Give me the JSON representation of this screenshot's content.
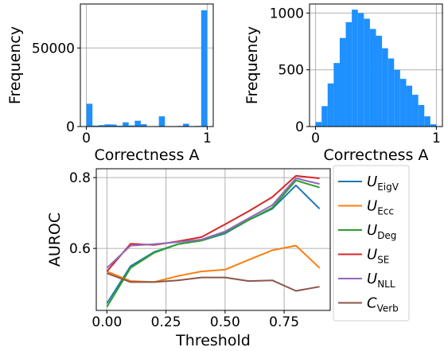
{
  "chart_data": [
    {
      "type": "bar",
      "xlabel": "Correctness A",
      "ylabel": "Frequency",
      "xlim": [
        -0.05,
        1.05
      ],
      "ylim": [
        0,
        78000
      ],
      "xticks": [
        {
          "v": 0,
          "label": "0"
        },
        {
          "v": 1,
          "label": "1"
        }
      ],
      "yticks": [
        {
          "v": 0,
          "label": "0"
        },
        {
          "v": 50000,
          "label": "50000"
        }
      ],
      "grid": true,
      "color": "#1e90ff",
      "bin_width": 0.05,
      "bins": [
        0,
        0.05,
        0.1,
        0.15,
        0.2,
        0.25,
        0.3,
        0.35,
        0.4,
        0.45,
        0.5,
        0.55,
        0.6,
        0.65,
        0.7,
        0.75,
        0.8,
        0.85,
        0.9,
        0.95
      ],
      "values": [
        14500,
        600,
        900,
        1400,
        1300,
        500,
        2700,
        700,
        3700,
        1500,
        200,
        300,
        6500,
        300,
        300,
        400,
        1800,
        300,
        400,
        74000
      ]
    },
    {
      "type": "bar",
      "xlabel": "Correctness A",
      "ylabel": "Frequency",
      "xlim": [
        -0.05,
        1.05
      ],
      "ylim": [
        0,
        1080
      ],
      "xticks": [
        {
          "v": 0,
          "label": "0"
        },
        {
          "v": 1,
          "label": "1"
        }
      ],
      "yticks": [
        {
          "v": 0,
          "label": "0"
        },
        {
          "v": 500,
          "label": "500"
        },
        {
          "v": 1000,
          "label": "1000"
        }
      ],
      "grid": true,
      "color": "#1e90ff",
      "bin_width": 0.05,
      "bins": [
        0,
        0.05,
        0.1,
        0.15,
        0.2,
        0.25,
        0.3,
        0.35,
        0.4,
        0.45,
        0.5,
        0.55,
        0.6,
        0.65,
        0.7,
        0.75,
        0.8,
        0.85,
        0.9,
        0.95
      ],
      "values": [
        40,
        180,
        380,
        560,
        780,
        920,
        1030,
        1000,
        950,
        860,
        800,
        690,
        600,
        500,
        420,
        360,
        280,
        190,
        90,
        20
      ]
    },
    {
      "type": "line",
      "xlabel": "Threshold",
      "ylabel": "AUROC",
      "xlim": [
        -0.045,
        0.945
      ],
      "ylim": [
        0.425,
        0.825
      ],
      "xticks": [
        {
          "v": 0,
          "label": "0.00"
        },
        {
          "v": 0.25,
          "label": "0.25"
        },
        {
          "v": 0.5,
          "label": "0.50"
        },
        {
          "v": 0.75,
          "label": "0.75"
        }
      ],
      "yticks": [
        {
          "v": 0.6,
          "label": "0.6"
        },
        {
          "v": 0.8,
          "label": "0.8"
        }
      ],
      "grid": true,
      "legend_position": "right",
      "x": [
        0,
        0.1,
        0.2,
        0.3,
        0.4,
        0.5,
        0.6,
        0.7,
        0.8,
        0.9
      ],
      "series": [
        {
          "name": "U",
          "sub": "EigV",
          "color": "#1f77b4",
          "values": [
            0.445,
            0.55,
            0.59,
            0.612,
            0.622,
            0.642,
            0.68,
            0.712,
            0.778,
            0.712
          ]
        },
        {
          "name": "U",
          "sub": "Ecc",
          "color": "#ff7f0e",
          "values": [
            0.535,
            0.508,
            0.505,
            0.522,
            0.535,
            0.54,
            0.568,
            0.595,
            0.608,
            0.545
          ]
        },
        {
          "name": "U",
          "sub": "Deg",
          "color": "#2ca02c",
          "values": [
            0.435,
            0.545,
            0.588,
            0.612,
            0.622,
            0.645,
            0.68,
            0.715,
            0.792,
            0.772
          ]
        },
        {
          "name": "U",
          "sub": "SE",
          "color": "#d62728",
          "values": [
            0.535,
            0.613,
            0.61,
            0.62,
            0.632,
            0.668,
            0.705,
            0.745,
            0.805,
            0.798
          ]
        },
        {
          "name": "U",
          "sub": "NLL",
          "color": "#9467bd",
          "values": [
            0.545,
            0.608,
            0.612,
            0.618,
            0.625,
            0.648,
            0.685,
            0.722,
            0.798,
            0.782
          ]
        },
        {
          "name": "C",
          "sub": "Verb",
          "color": "#8c564b",
          "values": [
            0.53,
            0.505,
            0.505,
            0.51,
            0.518,
            0.518,
            0.508,
            0.51,
            0.48,
            0.492
          ]
        }
      ]
    }
  ]
}
